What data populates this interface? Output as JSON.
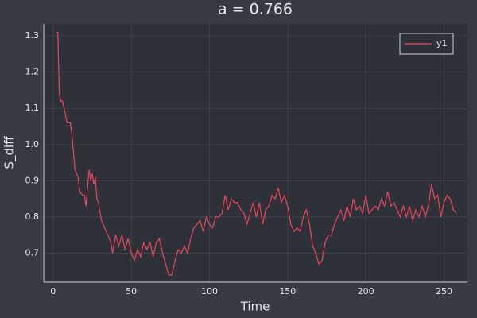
{
  "chart_data": {
    "type": "line",
    "title": "a = 0.766",
    "xlabel": "Time",
    "ylabel": "S_diff",
    "x": [
      2,
      3,
      4,
      5,
      6,
      8,
      9,
      11,
      12,
      13,
      14,
      16,
      17,
      19,
      20,
      21,
      22,
      23,
      24,
      25,
      26,
      27,
      28,
      29,
      30,
      31,
      33,
      35,
      37,
      38,
      40,
      42,
      44,
      46,
      48,
      50,
      52,
      54,
      56,
      58,
      60,
      62,
      64,
      66,
      68,
      70,
      72,
      74,
      76,
      78,
      80,
      82,
      84,
      86,
      88,
      90,
      92,
      94,
      96,
      98,
      100,
      102,
      104,
      106,
      108,
      110,
      112,
      114,
      116,
      118,
      120,
      122,
      124,
      126,
      128,
      130,
      132,
      134,
      136,
      138,
      140,
      142,
      144,
      146,
      148,
      150,
      152,
      154,
      156,
      158,
      160,
      162,
      164,
      166,
      168,
      170,
      172,
      174,
      176,
      178,
      180,
      182,
      184,
      186,
      188,
      190,
      192,
      194,
      196,
      198,
      200,
      202,
      204,
      206,
      208,
      210,
      212,
      214,
      216,
      218,
      220,
      222,
      224,
      226,
      228,
      230,
      232,
      234,
      236,
      238,
      240,
      242,
      244,
      246,
      248,
      250,
      252,
      254,
      256,
      258
    ],
    "series": [
      {
        "name": "y1",
        "color": "#e8455e",
        "values": [
          1.31,
          1.31,
          1.14,
          1.12,
          1.12,
          1.08,
          1.06,
          1.06,
          1.03,
          0.98,
          0.93,
          0.91,
          0.87,
          0.86,
          0.86,
          0.83,
          0.88,
          0.93,
          0.9,
          0.92,
          0.89,
          0.91,
          0.85,
          0.84,
          0.81,
          0.79,
          0.77,
          0.75,
          0.73,
          0.7,
          0.75,
          0.72,
          0.75,
          0.71,
          0.74,
          0.7,
          0.68,
          0.71,
          0.69,
          0.73,
          0.71,
          0.73,
          0.69,
          0.73,
          0.74,
          0.7,
          0.67,
          0.64,
          0.64,
          0.68,
          0.71,
          0.7,
          0.72,
          0.7,
          0.74,
          0.77,
          0.78,
          0.79,
          0.76,
          0.8,
          0.78,
          0.77,
          0.8,
          0.8,
          0.81,
          0.86,
          0.82,
          0.85,
          0.84,
          0.84,
          0.82,
          0.81,
          0.78,
          0.81,
          0.84,
          0.8,
          0.84,
          0.78,
          0.82,
          0.83,
          0.86,
          0.85,
          0.88,
          0.84,
          0.86,
          0.83,
          0.78,
          0.76,
          0.77,
          0.76,
          0.8,
          0.82,
          0.78,
          0.72,
          0.7,
          0.67,
          0.68,
          0.73,
          0.75,
          0.75,
          0.78,
          0.8,
          0.82,
          0.79,
          0.83,
          0.8,
          0.85,
          0.82,
          0.83,
          0.81,
          0.86,
          0.81,
          0.82,
          0.83,
          0.82,
          0.85,
          0.83,
          0.87,
          0.83,
          0.84,
          0.82,
          0.8,
          0.83,
          0.8,
          0.83,
          0.79,
          0.82,
          0.8,
          0.83,
          0.8,
          0.83,
          0.89,
          0.85,
          0.86,
          0.8,
          0.84,
          0.86,
          0.85,
          0.82,
          0.81
        ]
      }
    ],
    "xlim": [
      -6,
      265
    ],
    "ylim": [
      0.62,
      1.333
    ],
    "xticks": [
      0,
      50,
      100,
      150,
      200,
      250
    ],
    "yticks": [
      0.7,
      0.8,
      0.9,
      {
        "value": 1,
        "label": "1.0"
      },
      1.1,
      1.2,
      1.3
    ],
    "grid": true,
    "legend": "top-right"
  }
}
